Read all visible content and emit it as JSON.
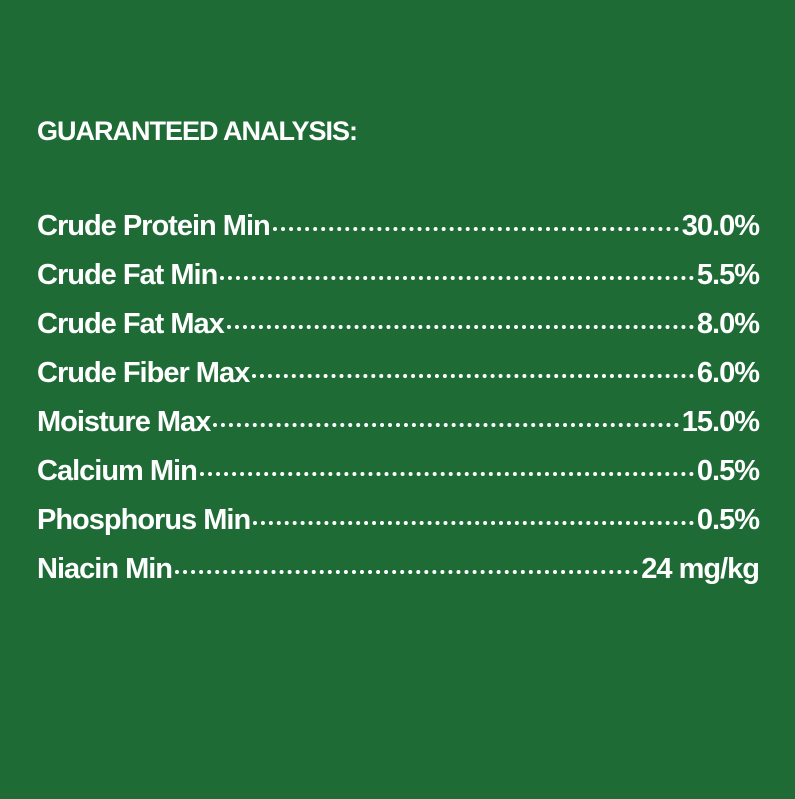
{
  "title": "GUARANTEED ANALYSIS:",
  "rows": [
    {
      "label": "Crude Protein Min",
      "value": "30.0%"
    },
    {
      "label": "Crude Fat Min",
      "value": "5.5%"
    },
    {
      "label": "Crude Fat Max",
      "value": "8.0%"
    },
    {
      "label": "Crude Fiber Max",
      "value": "6.0%"
    },
    {
      "label": "Moisture Max",
      "value": "15.0%"
    },
    {
      "label": "Calcium Min",
      "value": "0.5%"
    },
    {
      "label": "Phosphorus Min",
      "value": "0.5%"
    },
    {
      "label": "Niacin Min",
      "value": "24 mg/kg"
    }
  ]
}
